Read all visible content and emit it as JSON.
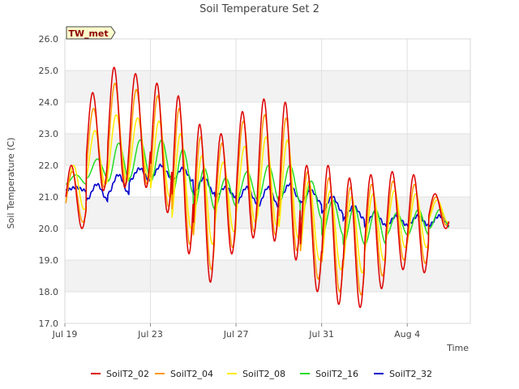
{
  "chart_data": {
    "type": "line",
    "title": "Soil Temperature Set 2",
    "xlabel": "Time",
    "ylabel": "Soil Temperature (C)",
    "badge": "TW_met",
    "ylim": [
      17.0,
      26.0
    ],
    "y_ticks": [
      "17.0",
      "18.0",
      "19.0",
      "20.0",
      "21.0",
      "22.0",
      "23.0",
      "24.0",
      "25.0",
      "26.0"
    ],
    "xlim": [
      "2023-07-19",
      "2023-08-06"
    ],
    "x_ticks": [
      {
        "label": "Jul 19",
        "date": "2023-07-19"
      },
      {
        "label": "Jul 23",
        "date": "2023-07-23"
      },
      {
        "label": "Jul 27",
        "date": "2023-07-27"
      },
      {
        "label": "Jul 31",
        "date": "2023-07-31"
      },
      {
        "label": "Aug 4",
        "date": "2023-08-04"
      }
    ],
    "x_start": "2023-07-19",
    "day_peaks_dates": [
      "Jul 19",
      "Jul 20",
      "Jul 21",
      "Jul 22",
      "Jul 23",
      "Jul 24",
      "Jul 25",
      "Jul 26",
      "Jul 27",
      "Jul 28",
      "Jul 29",
      "Jul 30",
      "Jul 31",
      "Aug 1",
      "Aug 2",
      "Aug 3",
      "Aug 4",
      "Aug 5"
    ],
    "series": [
      {
        "name": "SoilT2_02",
        "color": "#dd0000",
        "daily_max": [
          22.0,
          24.3,
          25.1,
          24.9,
          24.6,
          24.2,
          23.3,
          23.0,
          23.7,
          24.1,
          24.0,
          22.0,
          22.0,
          21.6,
          21.7,
          21.8,
          21.7,
          21.1
        ],
        "daily_min": [
          20.0,
          21.2,
          21.3,
          21.3,
          20.5,
          19.2,
          18.3,
          19.2,
          19.7,
          19.6,
          19.0,
          18.0,
          17.6,
          17.5,
          18.1,
          18.7,
          18.6,
          20.0
        ]
      },
      {
        "name": "SoilT2_04",
        "color": "#ff9900",
        "daily_max": [
          21.8,
          23.8,
          24.6,
          24.4,
          24.2,
          23.8,
          22.9,
          22.7,
          23.4,
          23.6,
          23.5,
          21.8,
          21.6,
          21.3,
          21.4,
          21.5,
          21.4,
          21.0
        ],
        "daily_min": [
          20.2,
          21.3,
          21.4,
          21.4,
          20.7,
          19.5,
          18.7,
          19.4,
          19.9,
          19.8,
          19.3,
          18.4,
          18.0,
          17.9,
          18.5,
          19.0,
          18.9,
          20.1
        ]
      },
      {
        "name": "SoilT2_08",
        "color": "#ffee00",
        "daily_max": [
          22.0,
          23.1,
          23.6,
          23.5,
          23.4,
          23.0,
          22.3,
          22.1,
          22.6,
          22.9,
          22.8,
          21.5,
          21.2,
          21.0,
          21.1,
          21.2,
          21.1,
          20.9
        ],
        "daily_min": [
          20.6,
          21.4,
          21.5,
          21.6,
          21.0,
          20.0,
          19.5,
          19.9,
          20.2,
          20.1,
          19.7,
          19.0,
          18.7,
          18.6,
          19.0,
          19.4,
          19.4,
          20.2
        ]
      },
      {
        "name": "SoilT2_16",
        "color": "#22dd22",
        "daily_max": [
          21.7,
          22.2,
          22.7,
          22.8,
          22.8,
          22.5,
          21.9,
          21.6,
          21.8,
          22.0,
          22.0,
          21.5,
          20.9,
          20.7,
          20.6,
          20.5,
          20.6,
          20.6
        ],
        "daily_min": [
          21.4,
          21.6,
          21.5,
          21.6,
          21.5,
          21.1,
          20.6,
          20.7,
          20.9,
          20.9,
          20.8,
          20.3,
          19.8,
          19.5,
          19.5,
          19.8,
          19.8,
          20.0
        ]
      },
      {
        "name": "SoilT2_32",
        "color": "#0000cc",
        "daily_max": [
          21.3,
          21.4,
          21.7,
          21.9,
          22.0,
          21.9,
          21.6,
          21.3,
          21.3,
          21.3,
          21.4,
          21.2,
          21.0,
          20.7,
          20.5,
          20.4,
          20.4,
          20.4
        ],
        "daily_min": [
          21.2,
          20.9,
          21.1,
          21.5,
          21.6,
          21.5,
          21.1,
          21.0,
          20.8,
          20.7,
          20.9,
          20.8,
          20.5,
          20.3,
          20.1,
          20.1,
          20.1,
          20.1
        ]
      }
    ],
    "grid": true,
    "legend_position": "bottom"
  }
}
